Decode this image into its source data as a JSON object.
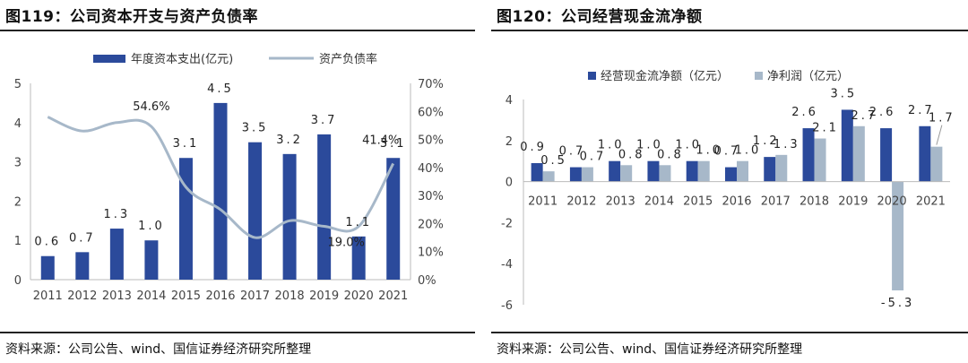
{
  "charts": [
    {
      "title": "图119：公司资本开支与资产负债率",
      "source": "资料来源：公司公告、wind、国信证券经济研究所整理",
      "chart_data": {
        "type": "bar",
        "categories": [
          "2011",
          "2012",
          "2013",
          "2014",
          "2015",
          "2016",
          "2017",
          "2018",
          "2019",
          "2020",
          "2021"
        ],
        "series": [
          {
            "name": "年度资本支出(亿元)",
            "type": "bar",
            "axis": "left",
            "color": "#2b4a9b",
            "values": [
              0.6,
              0.7,
              1.3,
              1.0,
              3.1,
              4.5,
              3.5,
              3.2,
              3.7,
              1.1,
              3.1
            ],
            "labels": [
              "0.6",
              "0.7",
              "1.3",
              "1.0",
              "3.1",
              "4.5",
              "3.5",
              "3.2",
              "3.7",
              "1.1",
              "3.1"
            ]
          },
          {
            "name": "资产负债率",
            "type": "line",
            "axis": "right",
            "color": "#a7b8c9",
            "values": [
              58,
              53,
              56,
              54.6,
              33,
              25,
              15,
              21,
              19,
              19.0,
              41.4
            ]
          }
        ],
        "line_labels": [
          {
            "index": 3,
            "text": "54.6%"
          },
          {
            "index": 9,
            "text": "19.0%"
          },
          {
            "index": 10,
            "text": "41.4%"
          }
        ],
        "ylim_left": [
          0,
          5
        ],
        "yticks_left": [
          "0",
          "1",
          "2",
          "3",
          "4",
          "5"
        ],
        "ylim_right": [
          0,
          70
        ],
        "yticks_right": [
          "0%",
          "10%",
          "20%",
          "30%",
          "40%",
          "50%",
          "60%",
          "70%"
        ],
        "legend_position": "top"
      }
    },
    {
      "title": "图120：公司经营现金流净额",
      "source": "资料来源：公司公告、wind、国信证券经济研究所整理",
      "chart_data": {
        "type": "bar",
        "categories": [
          "2011",
          "2012",
          "2013",
          "2014",
          "2015",
          "2016",
          "2017",
          "2018",
          "2019",
          "2020",
          "2021"
        ],
        "series": [
          {
            "name": "经营现金流净额（亿元）",
            "color": "#2b4a9b",
            "values": [
              0.9,
              0.7,
              1.0,
              1.0,
              1.0,
              0.7,
              1.2,
              2.6,
              3.5,
              2.6,
              2.7
            ],
            "labels": [
              "0.9",
              "0.7",
              "1.0",
              "1.0",
              "1.0",
              "0.7",
              "1.2",
              "2.6",
              "3.5",
              "2.6",
              "2.7"
            ]
          },
          {
            "name": "净利润（亿元）",
            "color": "#a7b8c9",
            "values": [
              0.5,
              0.7,
              0.8,
              0.8,
              1.0,
              1.0,
              1.3,
              2.1,
              2.7,
              -5.3,
              1.7
            ],
            "labels": [
              "0.5",
              "0.7",
              "0.8",
              "0.8",
              "1.0",
              "1.0",
              "1.3",
              "2.1",
              "2.7",
              "-5.3",
              "1.7"
            ]
          }
        ],
        "ylim": [
          -6,
          4
        ],
        "yticks": [
          "-6",
          "-4",
          "-2",
          "0",
          "2",
          "4"
        ],
        "legend_position": "top"
      }
    }
  ]
}
